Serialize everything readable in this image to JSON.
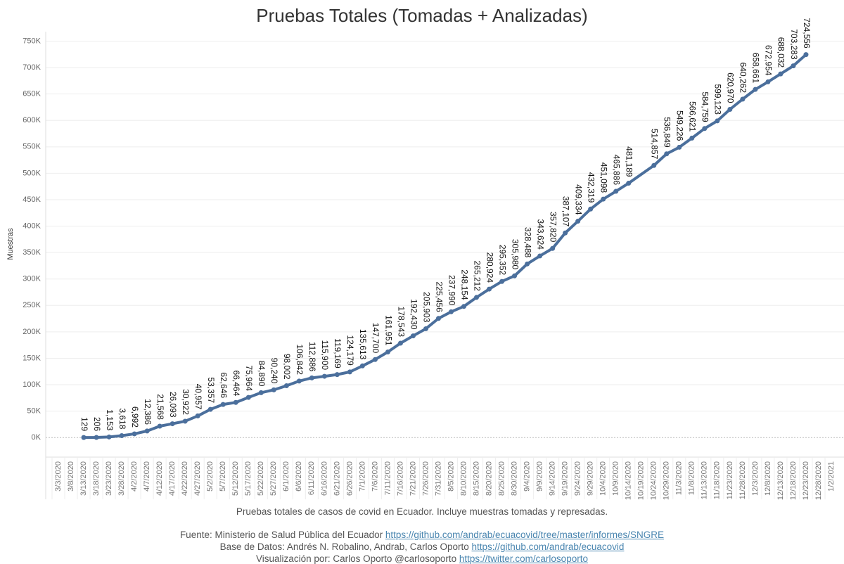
{
  "chart_data": {
    "type": "line",
    "title": "Pruebas Totales (Tomadas + Analizadas)",
    "y_label": "Muestras",
    "caption": "Pruebas totales de casos de covid en Ecuador. Incluye muestras tomadas y represadas.",
    "credits": [
      {
        "text": "Fuente: Ministerio de Salud Pública del Ecuador",
        "link": "https://github.com/andrab/ecuacovid/tree/master/informes/SNGRE"
      },
      {
        "text": "Base de Datos: Andrés N. Robalino, Andrab, Carlos Oporto",
        "link": "https://github.com/andrab/ecuacovid"
      },
      {
        "text": "Visualización por: Carlos Oporto @carlosoporto",
        "link": "https://twitter.com/carlosoporto"
      }
    ],
    "x": [
      "2020-03-13",
      "2020-03-18",
      "2020-03-23",
      "2020-03-28",
      "2020-04-02",
      "2020-04-07",
      "2020-04-12",
      "2020-04-17",
      "2020-04-22",
      "2020-04-27",
      "2020-05-02",
      "2020-05-07",
      "2020-05-12",
      "2020-05-17",
      "2020-05-22",
      "2020-05-27",
      "2020-06-01",
      "2020-06-06",
      "2020-06-11",
      "2020-06-16",
      "2020-06-21",
      "2020-06-26",
      "2020-07-01",
      "2020-07-06",
      "2020-07-11",
      "2020-07-16",
      "2020-07-21",
      "2020-07-26",
      "2020-07-31",
      "2020-08-05",
      "2020-08-10",
      "2020-08-15",
      "2020-08-20",
      "2020-08-25",
      "2020-08-30",
      "2020-09-04",
      "2020-09-09",
      "2020-09-14",
      "2020-09-19",
      "2020-09-24",
      "2020-09-29",
      "2020-10-04",
      "2020-10-09",
      "2020-10-14",
      "2020-10-24",
      "2020-10-29",
      "2020-11-03",
      "2020-11-08",
      "2020-11-13",
      "2020-11-18",
      "2020-11-23",
      "2020-11-28",
      "2020-12-03",
      "2020-12-08",
      "2020-12-13",
      "2020-12-18",
      "2020-12-23"
    ],
    "series": [
      {
        "name": "Pruebas Totales",
        "color": "#4b6f9c",
        "values": [
          129,
          206,
          1153,
          3618,
          6992,
          12386,
          21568,
          26093,
          30922,
          40957,
          53357,
          62646,
          66464,
          75964,
          84890,
          90240,
          98002,
          106842,
          112886,
          115900,
          119169,
          124179,
          135613,
          147700,
          161951,
          178543,
          192430,
          205903,
          225456,
          237990,
          248154,
          265212,
          280924,
          295352,
          305980,
          328488,
          343624,
          357820,
          387107,
          409334,
          432319,
          451098,
          465886,
          481189,
          514857,
          536849,
          549226,
          566621,
          584759,
          599123,
          620970,
          640262,
          658661,
          672954,
          688032,
          703283,
          724556
        ],
        "value_labels": [
          "129",
          "206",
          "1,153",
          "3,618",
          "6,992",
          "12,386",
          "21,568",
          "26,093",
          "30,922",
          "40,957",
          "53,357",
          "62,646",
          "66,464",
          "75,964",
          "84,890",
          "90,240",
          "98,002",
          "106,842",
          "112,886",
          "115,900",
          "119,169",
          "124,179",
          "135,613",
          "147,700",
          "161,951",
          "178,543",
          "192,430",
          "205,903",
          "225,456",
          "237,990",
          "248,154",
          "265,212",
          "280,924",
          "295,352",
          "305,980",
          "328,488",
          "343,624",
          "357,820",
          "387,107",
          "409,334",
          "432,319",
          "451,098",
          "465,886",
          "481,189",
          "514,857",
          "536,849",
          "549,226",
          "566,621",
          "584,759",
          "599,123",
          "620,970",
          "640,262",
          "658,661",
          "672,954",
          "688,032",
          "703,283",
          "724,556"
        ]
      }
    ],
    "xlim": [
      "2020-02-27",
      "2021-01-07"
    ],
    "xticks": [
      {
        "value": "2020-03-03",
        "label": "3/3/2020"
      },
      {
        "value": "2020-03-08",
        "label": "3/8/2020"
      },
      {
        "value": "2020-03-13",
        "label": "3/13/2020"
      },
      {
        "value": "2020-03-18",
        "label": "3/18/2020"
      },
      {
        "value": "2020-03-23",
        "label": "3/23/2020"
      },
      {
        "value": "2020-03-28",
        "label": "3/28/2020"
      },
      {
        "value": "2020-04-02",
        "label": "4/2/2020"
      },
      {
        "value": "2020-04-07",
        "label": "4/7/2020"
      },
      {
        "value": "2020-04-12",
        "label": "4/12/2020"
      },
      {
        "value": "2020-04-17",
        "label": "4/17/2020"
      },
      {
        "value": "2020-04-22",
        "label": "4/22/2020"
      },
      {
        "value": "2020-04-27",
        "label": "4/27/2020"
      },
      {
        "value": "2020-05-02",
        "label": "5/2/2020"
      },
      {
        "value": "2020-05-07",
        "label": "5/7/2020"
      },
      {
        "value": "2020-05-12",
        "label": "5/12/2020"
      },
      {
        "value": "2020-05-17",
        "label": "5/17/2020"
      },
      {
        "value": "2020-05-22",
        "label": "5/22/2020"
      },
      {
        "value": "2020-05-27",
        "label": "5/27/2020"
      },
      {
        "value": "2020-06-01",
        "label": "6/1/2020"
      },
      {
        "value": "2020-06-06",
        "label": "6/6/2020"
      },
      {
        "value": "2020-06-11",
        "label": "6/11/2020"
      },
      {
        "value": "2020-06-16",
        "label": "6/16/2020"
      },
      {
        "value": "2020-06-21",
        "label": "6/21/2020"
      },
      {
        "value": "2020-06-26",
        "label": "6/26/2020"
      },
      {
        "value": "2020-07-01",
        "label": "7/1/2020"
      },
      {
        "value": "2020-07-06",
        "label": "7/6/2020"
      },
      {
        "value": "2020-07-11",
        "label": "7/11/2020"
      },
      {
        "value": "2020-07-16",
        "label": "7/16/2020"
      },
      {
        "value": "2020-07-21",
        "label": "7/21/2020"
      },
      {
        "value": "2020-07-26",
        "label": "7/26/2020"
      },
      {
        "value": "2020-07-31",
        "label": "7/31/2020"
      },
      {
        "value": "2020-08-05",
        "label": "8/5/2020"
      },
      {
        "value": "2020-08-10",
        "label": "8/10/2020"
      },
      {
        "value": "2020-08-15",
        "label": "8/15/2020"
      },
      {
        "value": "2020-08-20",
        "label": "8/20/2020"
      },
      {
        "value": "2020-08-25",
        "label": "8/25/2020"
      },
      {
        "value": "2020-08-30",
        "label": "8/30/2020"
      },
      {
        "value": "2020-09-04",
        "label": "9/4/2020"
      },
      {
        "value": "2020-09-09",
        "label": "9/9/2020"
      },
      {
        "value": "2020-09-14",
        "label": "9/14/2020"
      },
      {
        "value": "2020-09-19",
        "label": "9/19/2020"
      },
      {
        "value": "2020-09-24",
        "label": "9/24/2020"
      },
      {
        "value": "2020-09-29",
        "label": "9/29/2020"
      },
      {
        "value": "2020-10-04",
        "label": "10/4/2020"
      },
      {
        "value": "2020-10-09",
        "label": "10/9/2020"
      },
      {
        "value": "2020-10-14",
        "label": "10/14/2020"
      },
      {
        "value": "2020-10-19",
        "label": "10/19/2020"
      },
      {
        "value": "2020-10-24",
        "label": "10/24/2020"
      },
      {
        "value": "2020-10-29",
        "label": "10/29/2020"
      },
      {
        "value": "2020-11-03",
        "label": "11/3/2020"
      },
      {
        "value": "2020-11-08",
        "label": "11/8/2020"
      },
      {
        "value": "2020-11-13",
        "label": "11/13/2020"
      },
      {
        "value": "2020-11-18",
        "label": "11/18/2020"
      },
      {
        "value": "2020-11-23",
        "label": "11/23/2020"
      },
      {
        "value": "2020-11-28",
        "label": "11/28/2020"
      },
      {
        "value": "2020-12-03",
        "label": "12/3/2020"
      },
      {
        "value": "2020-12-08",
        "label": "12/8/2020"
      },
      {
        "value": "2020-12-13",
        "label": "12/13/2020"
      },
      {
        "value": "2020-12-18",
        "label": "12/18/2020"
      },
      {
        "value": "2020-12-23",
        "label": "12/23/2020"
      },
      {
        "value": "2020-12-28",
        "label": "12/28/2020"
      },
      {
        "value": "2021-01-02",
        "label": "1/2/2021"
      }
    ],
    "ylim": [
      -37000,
      768000
    ],
    "yticks": [
      {
        "value": 0,
        "label": "0K"
      },
      {
        "value": 50000,
        "label": "50K"
      },
      {
        "value": 100000,
        "label": "100K"
      },
      {
        "value": 150000,
        "label": "150K"
      },
      {
        "value": 200000,
        "label": "200K"
      },
      {
        "value": 250000,
        "label": "250K"
      },
      {
        "value": 300000,
        "label": "300K"
      },
      {
        "value": 350000,
        "label": "350K"
      },
      {
        "value": 400000,
        "label": "400K"
      },
      {
        "value": 450000,
        "label": "450K"
      },
      {
        "value": 500000,
        "label": "500K"
      },
      {
        "value": 550000,
        "label": "550K"
      },
      {
        "value": 600000,
        "label": "600K"
      },
      {
        "value": 650000,
        "label": "650K"
      },
      {
        "value": 700000,
        "label": "700K"
      },
      {
        "value": 750000,
        "label": "750K"
      }
    ],
    "grid": true
  }
}
